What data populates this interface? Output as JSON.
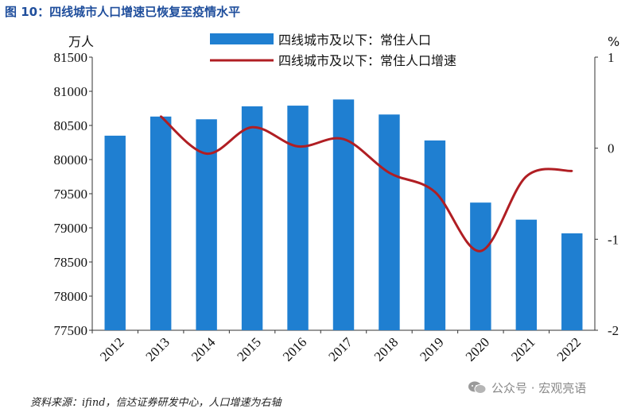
{
  "figure": {
    "title": "图 10：四线城市人口增速已恢复至疫情水平",
    "source": "资料来源：ifind，信达证券研发中心，人口增速为右轴",
    "watermark": "公众号 · 宏观亮语"
  },
  "colors": {
    "bar": "#1f7fd1",
    "line": "#b01e23",
    "title": "#1f4e9c"
  },
  "chart_data": {
    "type": "bar",
    "categories": [
      "2012",
      "2013",
      "2014",
      "2015",
      "2016",
      "2017",
      "2018",
      "2019",
      "2020",
      "2021",
      "2022"
    ],
    "series": [
      {
        "name": "四线城市及以下：常住人口",
        "axis": "left",
        "render": "bar",
        "values": [
          80350,
          80630,
          80590,
          80780,
          80790,
          80880,
          80660,
          80280,
          79370,
          79120,
          78920
        ]
      },
      {
        "name": "四线城市及以下：常住人口增速",
        "axis": "right",
        "render": "line",
        "values": [
          null,
          0.35,
          -0.06,
          0.23,
          0.02,
          0.1,
          -0.27,
          -0.48,
          -1.13,
          -0.31,
          -0.25
        ]
      }
    ],
    "y_left": {
      "unit": "万人",
      "ylim": [
        77500,
        81500
      ],
      "ticks": [
        "77500",
        "78000",
        "78500",
        "79000",
        "79500",
        "80000",
        "80500",
        "81000",
        "81500"
      ]
    },
    "y_right": {
      "unit": "%",
      "ylim": [
        -2,
        1
      ],
      "ticks": [
        "-2",
        "-1",
        "0",
        "1"
      ]
    },
    "grid": false,
    "legend": "top-center"
  }
}
